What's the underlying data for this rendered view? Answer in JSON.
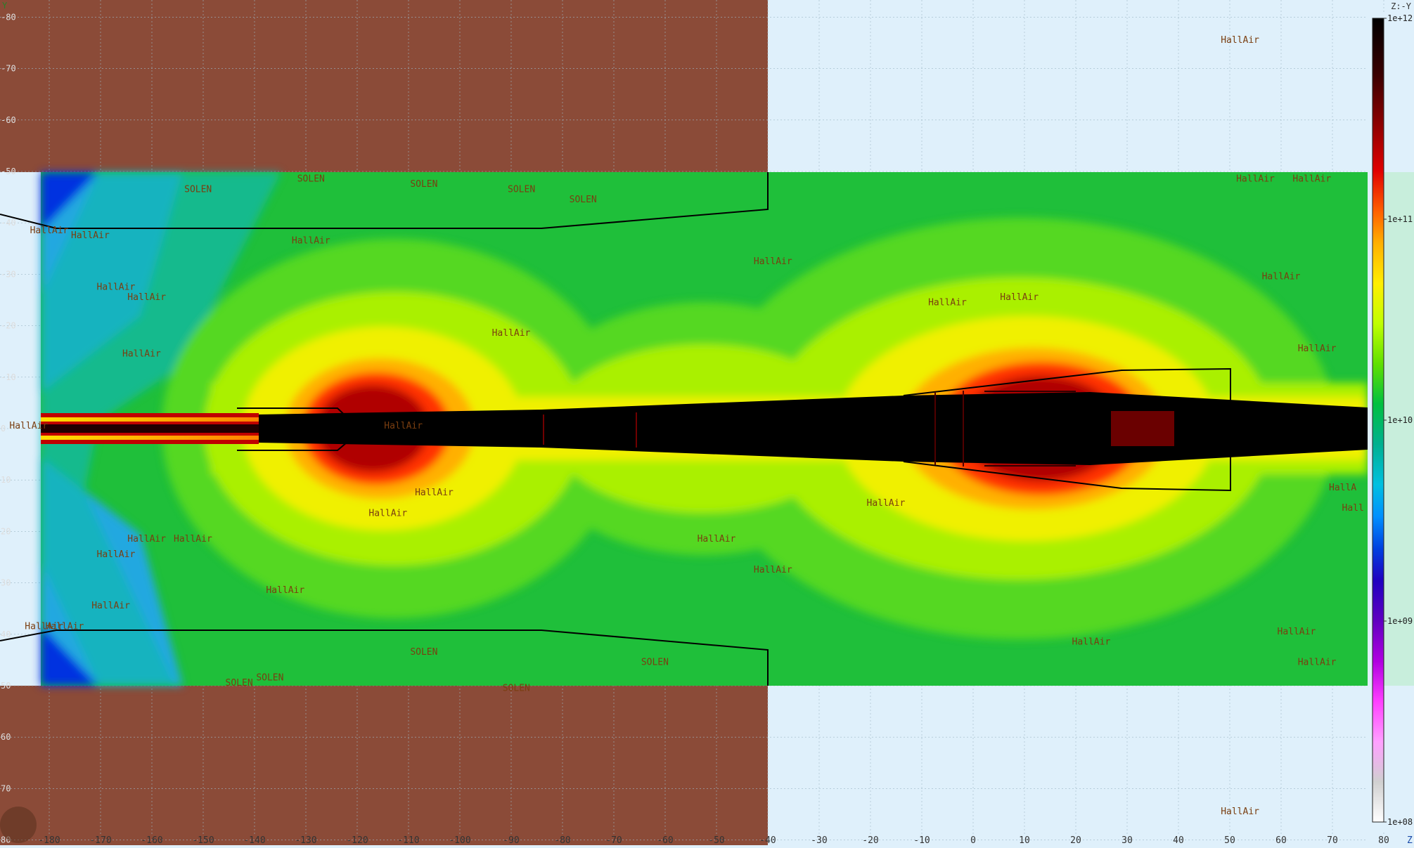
{
  "view": {
    "zLabel": "Z",
    "yLabel": "Y",
    "projection": "Z:-Y",
    "zRange": [
      -185,
      82
    ],
    "yRange": [
      -80,
      80
    ]
  },
  "axes": {
    "z_ticks": [
      "-180",
      "-170",
      "-160",
      "-150",
      "-140",
      "-130",
      "-120",
      "-110",
      "-100",
      "-90",
      "-80",
      "-70",
      "-60",
      "-50",
      "-40",
      "-30",
      "-20",
      "-10",
      "0",
      "10",
      "20",
      "30",
      "40",
      "50",
      "60",
      "70",
      "80"
    ],
    "y_ticks": [
      "-80",
      "-70",
      "-60",
      "-50",
      "-40",
      "-30",
      "-20",
      "-10",
      "0",
      "10",
      "20",
      "30",
      "40",
      "50",
      "60",
      "70",
      "80"
    ]
  },
  "colorbar": {
    "scale": "log",
    "labels": [
      "1e+12",
      "1e+11",
      "1e+10",
      "1e+09",
      "1e+08"
    ]
  },
  "palette": {
    "soil": "#8b4b38",
    "air": "#dff0fb",
    "grid": "#a8c0cc",
    "outline": "#000000",
    "labelText": "#7a3e10"
  },
  "region_labels": [
    {
      "text": "HallAir",
      "z": 52,
      "y": -75
    },
    {
      "text": "HallAir",
      "z": 52,
      "y": 75
    },
    {
      "text": "SOLEN",
      "z": -151,
      "y": -46
    },
    {
      "text": "SOLEN",
      "z": -129,
      "y": -48
    },
    {
      "text": "SOLEN",
      "z": -107,
      "y": -47
    },
    {
      "text": "SOLEN",
      "z": -88,
      "y": -46
    },
    {
      "text": "SOLEN",
      "z": -76,
      "y": -44
    },
    {
      "text": "HallAir",
      "z": -180,
      "y": -38
    },
    {
      "text": "HallAir",
      "z": -172,
      "y": -37
    },
    {
      "text": "HallAir",
      "z": -129,
      "y": -36
    },
    {
      "text": "HallAir",
      "z": -39,
      "y": -32
    },
    {
      "text": "HallAir",
      "z": -167,
      "y": -27
    },
    {
      "text": "HallAir",
      "z": -161,
      "y": -25
    },
    {
      "text": "HallAir",
      "z": -90,
      "y": -18
    },
    {
      "text": "HallAir",
      "z": -5,
      "y": -24
    },
    {
      "text": "HallAir",
      "z": 9,
      "y": -25
    },
    {
      "text": "HallAir",
      "z": 55,
      "y": -48
    },
    {
      "text": "HallAir",
      "z": 60,
      "y": -29
    },
    {
      "text": "HallAir",
      "z": 66,
      "y": -48
    },
    {
      "text": "HallAir",
      "z": 67,
      "y": -15
    },
    {
      "text": "HallAir",
      "z": -162,
      "y": -14
    },
    {
      "text": "HallAir",
      "z": -184,
      "y": 0
    },
    {
      "text": "HallAir",
      "z": -111,
      "y": 0
    },
    {
      "text": "HallAir",
      "z": -105,
      "y": 13
    },
    {
      "text": "HallAir",
      "z": -114,
      "y": 17
    },
    {
      "text": "HallAir",
      "z": -17,
      "y": 15
    },
    {
      "text": "HallAir",
      "z": -50,
      "y": 22
    },
    {
      "text": "HallAir",
      "z": -161,
      "y": 22
    },
    {
      "text": "HallAir",
      "z": -152,
      "y": 22
    },
    {
      "text": "HallAir",
      "z": -167,
      "y": 25
    },
    {
      "text": "HallAir",
      "z": -39,
      "y": 28
    },
    {
      "text": "HallAir",
      "z": -134,
      "y": 32
    },
    {
      "text": "HallAir",
      "z": -168,
      "y": 35
    },
    {
      "text": "HallAir",
      "z": -181,
      "y": 39
    },
    {
      "text": "HallAir",
      "z": -177,
      "y": 39
    },
    {
      "text": "HallAir",
      "z": 23,
      "y": 42
    },
    {
      "text": "HallAir",
      "z": 63,
      "y": 40
    },
    {
      "text": "HallAir",
      "z": 67,
      "y": 46
    },
    {
      "text": "HallA",
      "z": 72,
      "y": 12
    },
    {
      "text": "Hall",
      "z": 74,
      "y": 16
    },
    {
      "text": "SOLEN",
      "z": -107,
      "y": 44
    },
    {
      "text": "SOLEN",
      "z": -62,
      "y": 46
    },
    {
      "text": "SOLEN",
      "z": -143,
      "y": 50
    },
    {
      "text": "SOLEN",
      "z": -137,
      "y": 49
    },
    {
      "text": "SOLEN",
      "z": -89,
      "y": 51
    }
  ]
}
